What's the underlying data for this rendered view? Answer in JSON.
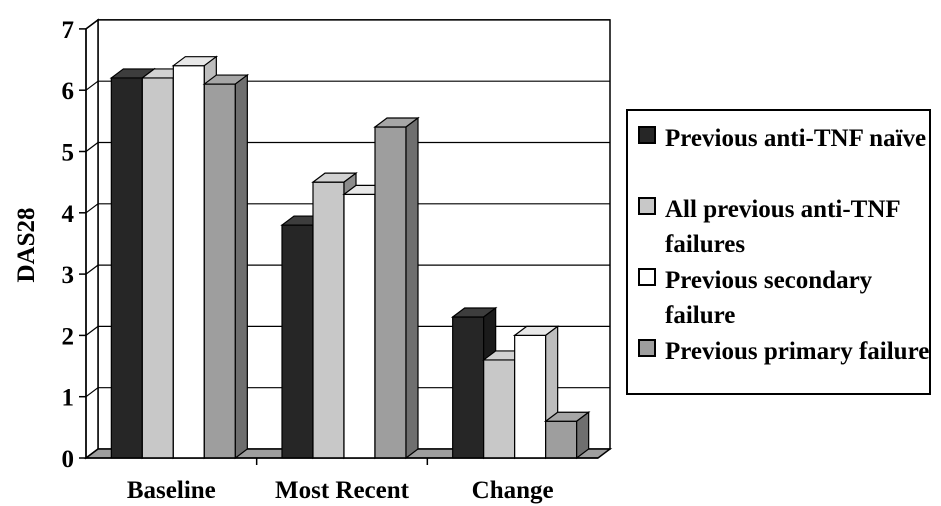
{
  "chart_data": {
    "type": "bar",
    "style": "3d-clustered",
    "categories": [
      "Baseline",
      "Most Recent",
      "Change"
    ],
    "ylabel": "DAS28",
    "xlabel": "",
    "ylim": [
      0,
      7
    ],
    "yticks": [
      0,
      1,
      2,
      3,
      4,
      5,
      6,
      7
    ],
    "grid": true,
    "legend_position": "right",
    "series": [
      {
        "name": "Previous anti-TNF naïve",
        "values": [
          6.2,
          3.8,
          2.3
        ],
        "color": "#262626"
      },
      {
        "name": "All previous anti-TNF failures",
        "values": [
          6.2,
          4.5,
          1.6
        ],
        "color": "#c8c8c8"
      },
      {
        "name": "Previous secondary failure",
        "values": [
          6.4,
          4.3,
          2.0
        ],
        "color": "#ffffff"
      },
      {
        "name": "Previous primary failure",
        "values": [
          6.1,
          5.4,
          0.6
        ],
        "color": "#9e9e9e"
      }
    ]
  }
}
